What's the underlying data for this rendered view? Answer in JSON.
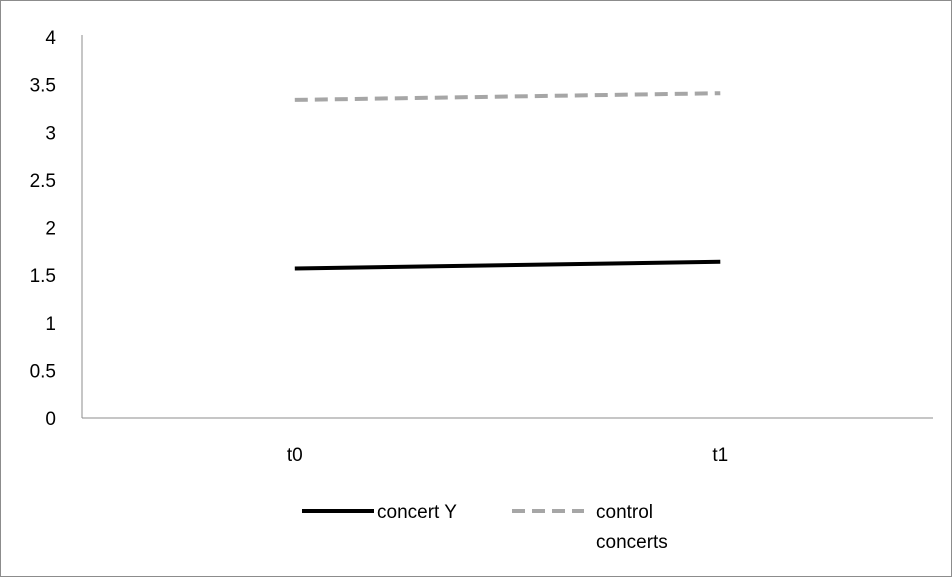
{
  "chart_data": {
    "type": "line",
    "title": "",
    "xlabel": "",
    "ylabel": "",
    "categories": [
      "t0",
      "t1"
    ],
    "ylim": [
      0,
      4
    ],
    "yticks": [
      "0",
      "0.5",
      "1",
      "1.5",
      "2",
      "2.5",
      "3",
      "3.5",
      "4"
    ],
    "grid": false,
    "legend_position": "bottom",
    "series": [
      {
        "name": "concert Y",
        "values": [
          1.57,
          1.64
        ],
        "color": "#000000",
        "style": "solid"
      },
      {
        "name": "control concerts",
        "legend_lines": [
          "control",
          "concerts"
        ],
        "values": [
          3.34,
          3.41
        ],
        "color": "#a6a6a6",
        "style": "dashed"
      }
    ]
  }
}
